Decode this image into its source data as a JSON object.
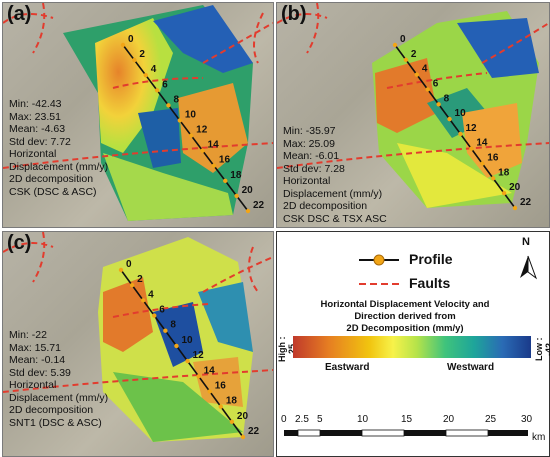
{
  "panels": [
    {
      "label": "(a)",
      "stats": [
        "Min: -42.43",
        "Max: 23.51",
        "Mean: -4.63",
        "Std dev: 7.72",
        "Horizontal",
        "Displacement (mm/y)",
        "2D decomposition",
        "CSK (DSC & ASC)"
      ]
    },
    {
      "label": "(b)",
      "stats": [
        "Min: -35.97",
        "Max: 25.09",
        "Mean: -6.01",
        "Std dev: 7.28",
        "Horizontal",
        "Displacement (mm/y)",
        "2D decomposition",
        "CSK DSC & TSX ASC"
      ]
    },
    {
      "label": "(c)",
      "stats": [
        "Min: -22",
        "Max: 15.71",
        "Mean: -0.14",
        "Std dev: 5.39",
        "Horizontal",
        "Displacement (mm/y)",
        "2D decomposition",
        "SNT1 (DSC & ASC)"
      ]
    }
  ],
  "profile_ticks": [
    "0",
    "2",
    "4",
    "6",
    "8",
    "10",
    "12",
    "14",
    "16",
    "18",
    "20",
    "22"
  ],
  "legend": {
    "profile_label": "Profile",
    "faults_label": "Faults",
    "north_label": "N",
    "colorbar_title_1": "Horizontal Displacement Velocity and",
    "colorbar_title_2": "Direction derived  from",
    "colorbar_title_3": "2D Decomposition  (mm/y)",
    "high_label": "High : 25",
    "low_label": "Low : -42",
    "eastward_label": "Eastward",
    "westward_label": "Westward",
    "colors": {
      "profile_line": "#111111",
      "profile_marker": "#f2a516",
      "fault": "#e23c2e"
    }
  },
  "scale_bar": {
    "ticks": [
      "0",
      "2.5",
      "5",
      "10",
      "15",
      "20",
      "25",
      "30"
    ],
    "unit": "km"
  }
}
